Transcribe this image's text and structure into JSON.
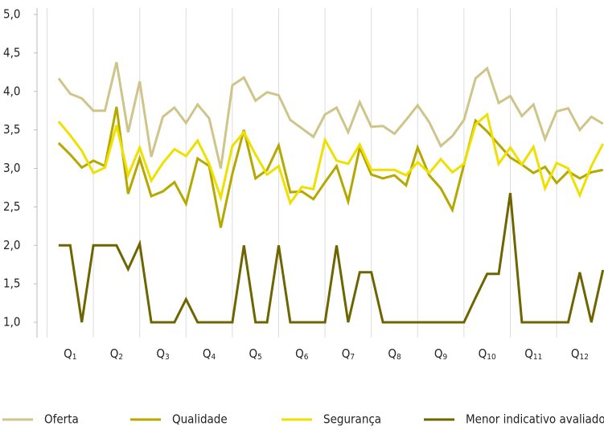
{
  "chart_data": {
    "type": "line",
    "categories": [
      null,
      "Q1",
      null,
      null,
      null,
      "Q2",
      null,
      null,
      null,
      "Q3",
      null,
      null,
      null,
      "Q4",
      null,
      null,
      null,
      "Q5",
      null,
      null,
      null,
      "Q6",
      null,
      null,
      null,
      "Q7",
      null,
      null,
      null,
      "Q8",
      null,
      null,
      null,
      "Q9",
      null,
      null,
      null,
      "Q10",
      null,
      null,
      null,
      "Q11",
      null,
      null,
      null,
      "Q12",
      null,
      null
    ],
    "series": [
      {
        "name": "Oferta",
        "color": "#cfc48a",
        "values": [
          4.17,
          3.97,
          3.91,
          3.75,
          3.75,
          4.38,
          3.47,
          4.13,
          3.15,
          3.67,
          3.79,
          3.59,
          3.83,
          3.65,
          3.0,
          4.08,
          4.18,
          3.88,
          3.99,
          3.95,
          3.63,
          3.52,
          3.41,
          3.7,
          3.79,
          3.47,
          3.86,
          3.54,
          3.55,
          3.45,
          3.63,
          3.82,
          3.6,
          3.29,
          3.42,
          3.63,
          4.17,
          4.3,
          3.85,
          3.94,
          3.68,
          3.83,
          3.38,
          3.74,
          3.78,
          3.5,
          3.67,
          3.58
        ]
      },
      {
        "name": "Qualidade",
        "color": "#b5a800",
        "values": [
          3.33,
          3.18,
          3.01,
          3.1,
          3.03,
          3.8,
          2.67,
          3.13,
          2.64,
          2.7,
          2.82,
          2.54,
          3.13,
          3.03,
          2.23,
          2.93,
          3.5,
          2.87,
          2.98,
          3.3,
          2.69,
          2.7,
          2.6,
          2.82,
          3.03,
          2.57,
          3.27,
          2.92,
          2.87,
          2.91,
          2.78,
          3.27,
          2.91,
          2.74,
          2.46,
          3.05,
          3.62,
          3.48,
          3.31,
          3.14,
          3.05,
          2.94,
          3.02,
          2.81,
          2.96,
          2.87,
          2.95,
          2.98
        ]
      },
      {
        "name": "Segurança",
        "color": "#efe000",
        "values": [
          3.61,
          3.43,
          3.23,
          2.94,
          3.01,
          3.56,
          2.91,
          3.27,
          2.84,
          3.07,
          3.25,
          3.16,
          3.36,
          3.06,
          2.62,
          3.29,
          3.47,
          3.18,
          2.92,
          3.03,
          2.55,
          2.76,
          2.73,
          3.37,
          3.1,
          3.06,
          3.31,
          2.98,
          2.98,
          2.98,
          2.91,
          3.08,
          2.94,
          3.12,
          2.95,
          3.06,
          3.57,
          3.7,
          3.06,
          3.27,
          3.05,
          3.28,
          2.74,
          3.07,
          3.0,
          2.65,
          3.03,
          3.32
        ]
      },
      {
        "name": "Menor indicativo avaliado",
        "color": "#6f6500",
        "values": [
          2.0,
          2.0,
          1.0,
          2.0,
          2.0,
          2.0,
          1.69,
          2.02,
          1.0,
          1.0,
          1.0,
          1.3,
          1.0,
          1.0,
          1.0,
          1.0,
          2.0,
          1.0,
          1.0,
          2.0,
          1.0,
          1.0,
          1.0,
          1.0,
          2.0,
          1.0,
          1.65,
          1.65,
          1.0,
          1.0,
          1.0,
          1.0,
          1.0,
          1.0,
          1.0,
          1.0,
          1.32,
          1.63,
          1.63,
          2.68,
          1.0,
          1.0,
          1.0,
          1.0,
          1.0,
          1.65,
          1.0,
          1.68
        ]
      }
    ],
    "ylim": [
      1,
      5
    ],
    "yticks": [
      {
        "value": 1,
        "label": "1,0"
      },
      {
        "value": 1.5,
        "label": "1,5"
      },
      {
        "value": 2,
        "label": "2,0"
      },
      {
        "value": 2.5,
        "label": "2,5"
      },
      {
        "value": 3,
        "label": "3,0"
      },
      {
        "value": 3.5,
        "label": "3,5"
      },
      {
        "value": 4,
        "label": "4,0"
      },
      {
        "value": 4.5,
        "label": "4,5"
      },
      {
        "value": 5,
        "label": "5,0"
      }
    ],
    "grid": false,
    "legend": "bottom"
  }
}
